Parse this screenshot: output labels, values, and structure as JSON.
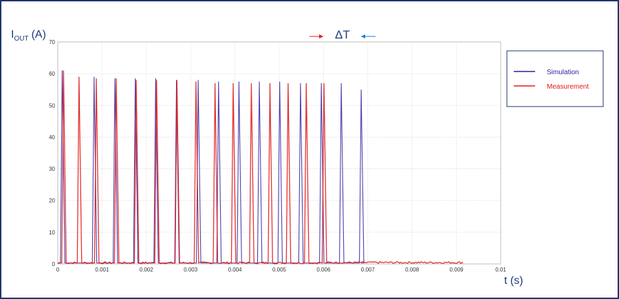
{
  "chart_data": {
    "type": "line",
    "ylabel_main": "I",
    "ylabel_sub": "OUT",
    "ylabel_unit": "(A)",
    "xlabel": "t (s)",
    "annotation": "ΔT",
    "xlim": [
      0,
      0.01
    ],
    "ylim": [
      0,
      70
    ],
    "xticks": [
      0,
      0.001,
      0.002,
      0.003,
      0.004,
      0.005,
      0.006,
      0.007,
      0.008,
      0.009,
      0.01
    ],
    "xtick_labels": [
      "0",
      "0.001",
      "0.002",
      "0.003",
      "0.004",
      "0.005",
      "0.006",
      "0.007",
      "0.008",
      "0.009",
      "0.01"
    ],
    "yticks": [
      0,
      10,
      20,
      30,
      40,
      50,
      60,
      70
    ],
    "ytick_labels": [
      "0",
      "10",
      "20",
      "30",
      "40",
      "50",
      "60",
      "70"
    ],
    "grid": true,
    "legend_position": "right",
    "series": [
      {
        "name": "Simulation",
        "color": "#2b1f9e",
        "pulse_times": [
          0.0001,
          0.00082,
          0.00129,
          0.00175,
          0.00221,
          0.00268,
          0.00317,
          0.00363,
          0.00409,
          0.00455,
          0.00501,
          0.00548,
          0.00595,
          0.0064,
          0.00685
        ],
        "pulse_peaks": [
          61,
          59,
          58.5,
          58.5,
          58.5,
          58,
          58,
          57.5,
          57.5,
          57.5,
          57.5,
          57,
          57,
          57,
          55
        ],
        "end_time": 0.00685
      },
      {
        "name": "Measurement",
        "color": "#e01b1b",
        "pulse_times": [
          0.00013,
          0.00048,
          0.00087,
          0.00132,
          0.00177,
          0.00223,
          0.00269,
          0.00312,
          0.00355,
          0.00396,
          0.00437,
          0.00479,
          0.0052,
          0.00561,
          0.00601
        ],
        "pulse_peaks": [
          61,
          59,
          58.5,
          58.5,
          58,
          58,
          58,
          57.5,
          57,
          57,
          57,
          57,
          57,
          57,
          57
        ],
        "noise_level": 0.3,
        "end_time": 0.00915
      }
    ]
  }
}
